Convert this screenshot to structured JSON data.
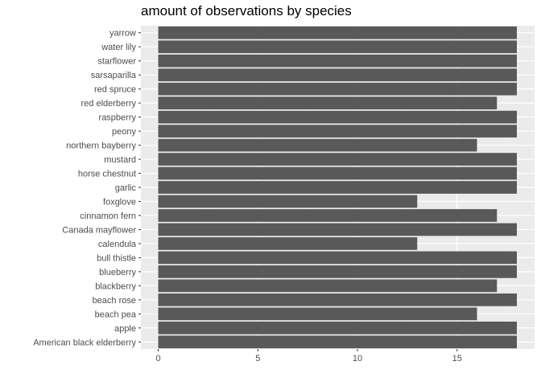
{
  "chart_data": {
    "type": "bar",
    "orientation": "horizontal",
    "title": "amount of observations by species",
    "xlabel": "",
    "ylabel": "",
    "xlim": [
      0,
      18.9
    ],
    "xticks": [
      0,
      5,
      10,
      15
    ],
    "grid": true,
    "legend": "none",
    "bar_color": "#595959",
    "panel_color": "#ebebeb",
    "categories": [
      "yarrow",
      "water lily",
      "starflower",
      "sarsaparilla",
      "red spruce",
      "red elderberry",
      "raspberry",
      "peony",
      "northern bayberry",
      "mustard",
      "horse chestnut",
      "garlic",
      "foxglove",
      "cinnamon fern",
      "Canada mayflower",
      "calendula",
      "bull thistle",
      "blueberry",
      "blackberry",
      "beach rose",
      "beach pea",
      "apple",
      "American black elderberry"
    ],
    "values": [
      18,
      18,
      18,
      18,
      18,
      17,
      18,
      18,
      16,
      18,
      18,
      18,
      13,
      17,
      18,
      13,
      18,
      18,
      17,
      18,
      16,
      18,
      18
    ]
  }
}
